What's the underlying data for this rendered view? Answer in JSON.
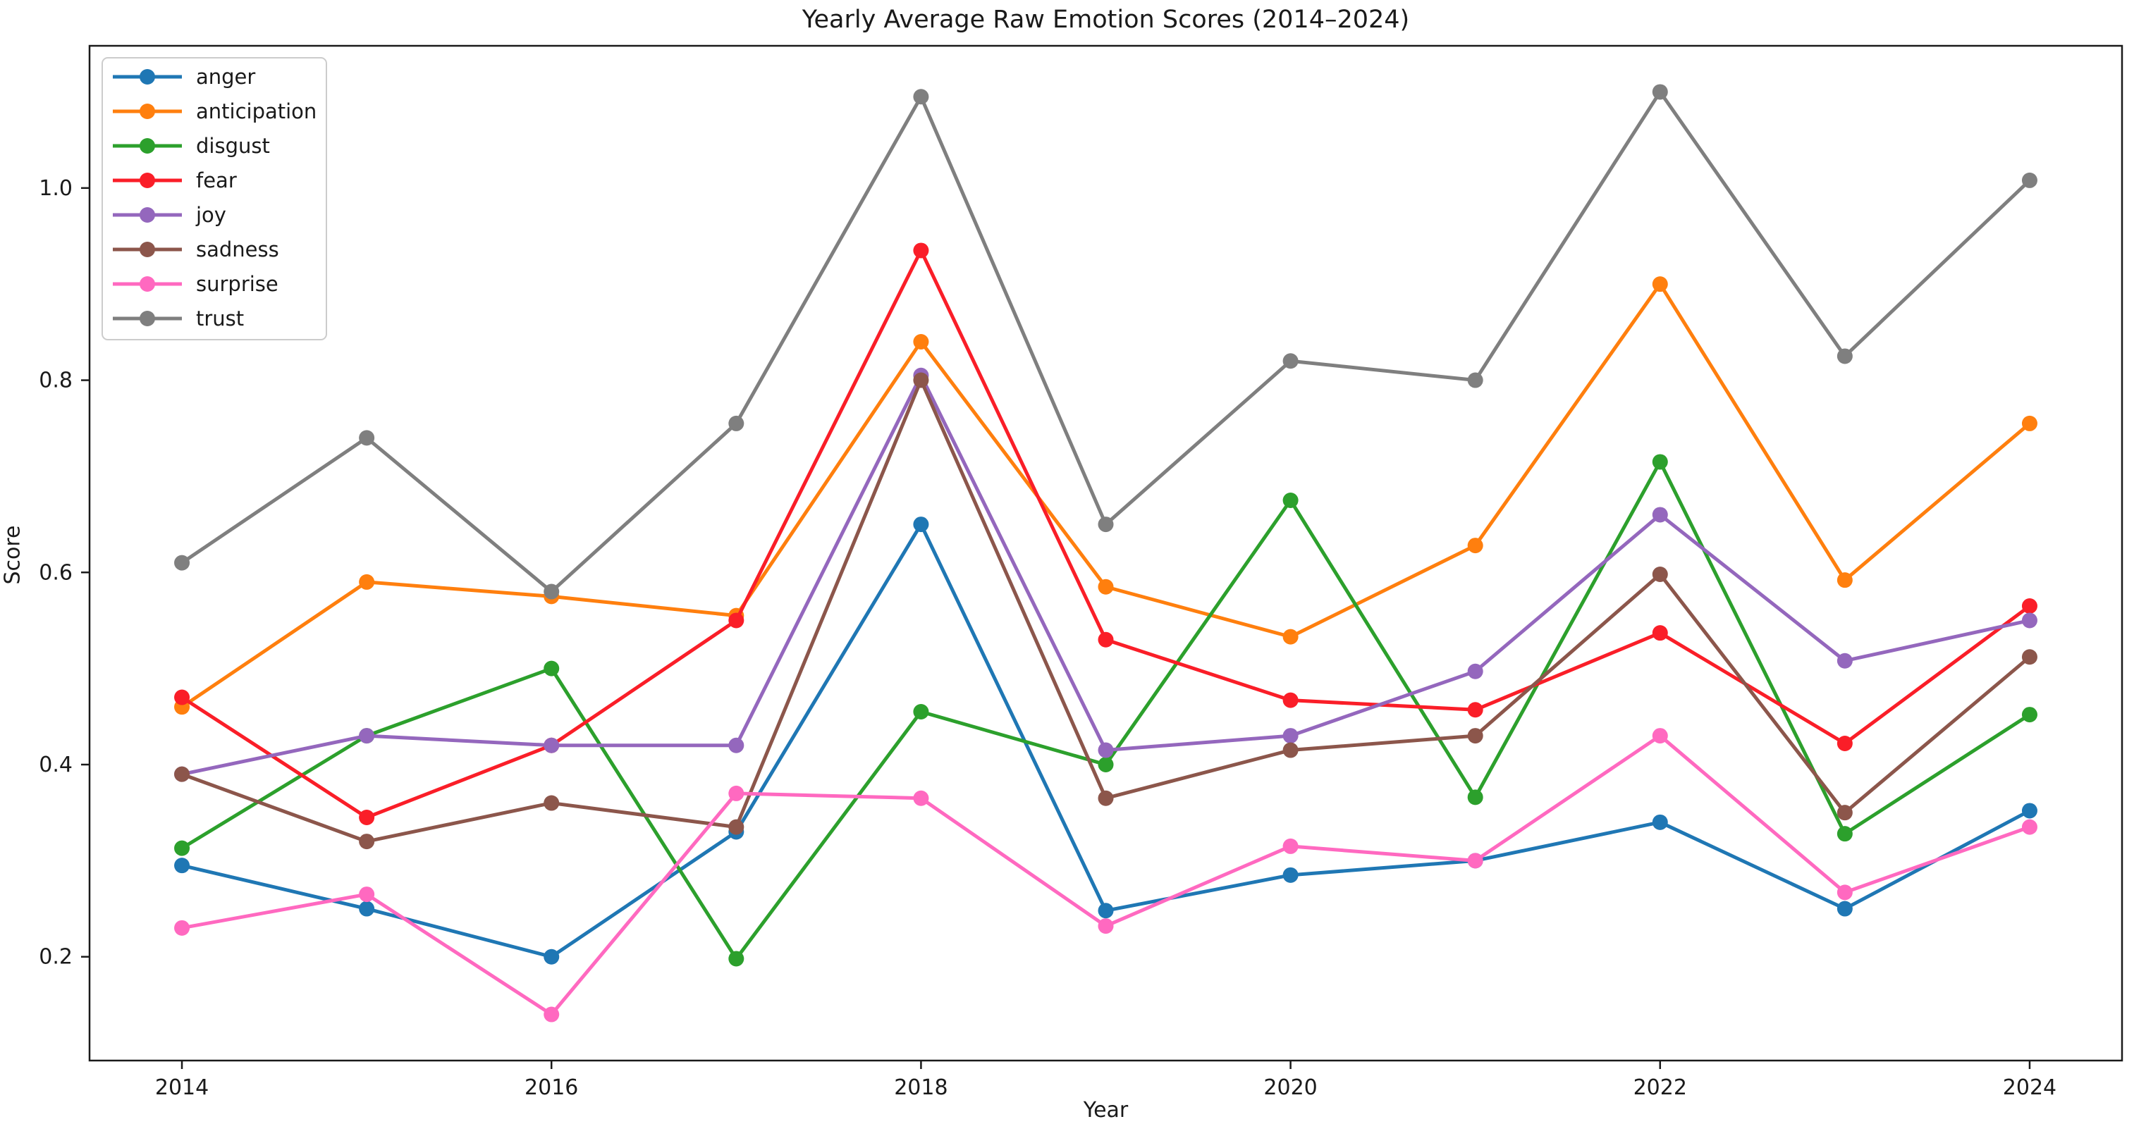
{
  "figure": {
    "background": "#ffffff"
  },
  "chart_data": {
    "type": "line",
    "title": "Yearly Average Raw Emotion Scores (2014–2024)",
    "xlabel": "Year",
    "ylabel": "Score",
    "x": [
      2014,
      2015,
      2016,
      2017,
      2018,
      2019,
      2020,
      2021,
      2022,
      2023,
      2024
    ],
    "xlim": [
      2013.5,
      2024.5
    ],
    "ylim": [
      0.092,
      1.148
    ],
    "xticks": {
      "values": [
        2014,
        2016,
        2018,
        2020,
        2022,
        2024
      ],
      "labels": [
        "2014",
        "2016",
        "2018",
        "2020",
        "2022",
        "2024"
      ]
    },
    "yticks": {
      "values": [
        0.2,
        0.4,
        0.6,
        0.8,
        1.0
      ],
      "labels": [
        "0.2",
        "0.4",
        "0.6",
        "0.8",
        "1.0"
      ]
    },
    "grid": false,
    "legend": {
      "position": "upper left"
    },
    "marker": "circle",
    "series": [
      {
        "name": "anger",
        "color": "#1f77b4",
        "values": [
          0.295,
          0.25,
          0.2,
          0.33,
          0.65,
          0.248,
          0.285,
          0.3,
          0.34,
          0.25,
          0.352
        ]
      },
      {
        "name": "anticipation",
        "color": "#ff7f0e",
        "values": [
          0.46,
          0.59,
          0.575,
          0.555,
          0.84,
          0.585,
          0.533,
          0.628,
          0.9,
          0.592,
          0.755
        ]
      },
      {
        "name": "disgust",
        "color": "#2ca02c",
        "values": [
          0.313,
          0.43,
          0.5,
          0.198,
          0.455,
          0.4,
          0.675,
          0.366,
          0.715,
          0.328,
          0.452
        ]
      },
      {
        "name": "fear",
        "color": "#fa1e28",
        "values": [
          0.47,
          0.345,
          0.42,
          0.55,
          0.935,
          0.53,
          0.467,
          0.457,
          0.537,
          0.422,
          0.565
        ]
      },
      {
        "name": "joy",
        "color": "#9467bd",
        "values": [
          0.39,
          0.43,
          0.42,
          0.42,
          0.805,
          0.415,
          0.43,
          0.497,
          0.66,
          0.508,
          0.55
        ]
      },
      {
        "name": "sadness",
        "color": "#8c564b",
        "values": [
          0.39,
          0.32,
          0.36,
          0.335,
          0.8,
          0.365,
          0.415,
          0.43,
          0.598,
          0.35,
          0.512
        ]
      },
      {
        "name": "surprise",
        "color": "#ff69c0",
        "values": [
          0.23,
          0.265,
          0.14,
          0.37,
          0.365,
          0.232,
          0.315,
          0.3,
          0.43,
          0.267,
          0.335
        ]
      },
      {
        "name": "trust",
        "color": "#7f7f7f",
        "values": [
          0.61,
          0.74,
          0.58,
          0.755,
          1.095,
          0.65,
          0.82,
          0.8,
          1.1,
          0.825,
          1.008
        ]
      }
    ]
  }
}
